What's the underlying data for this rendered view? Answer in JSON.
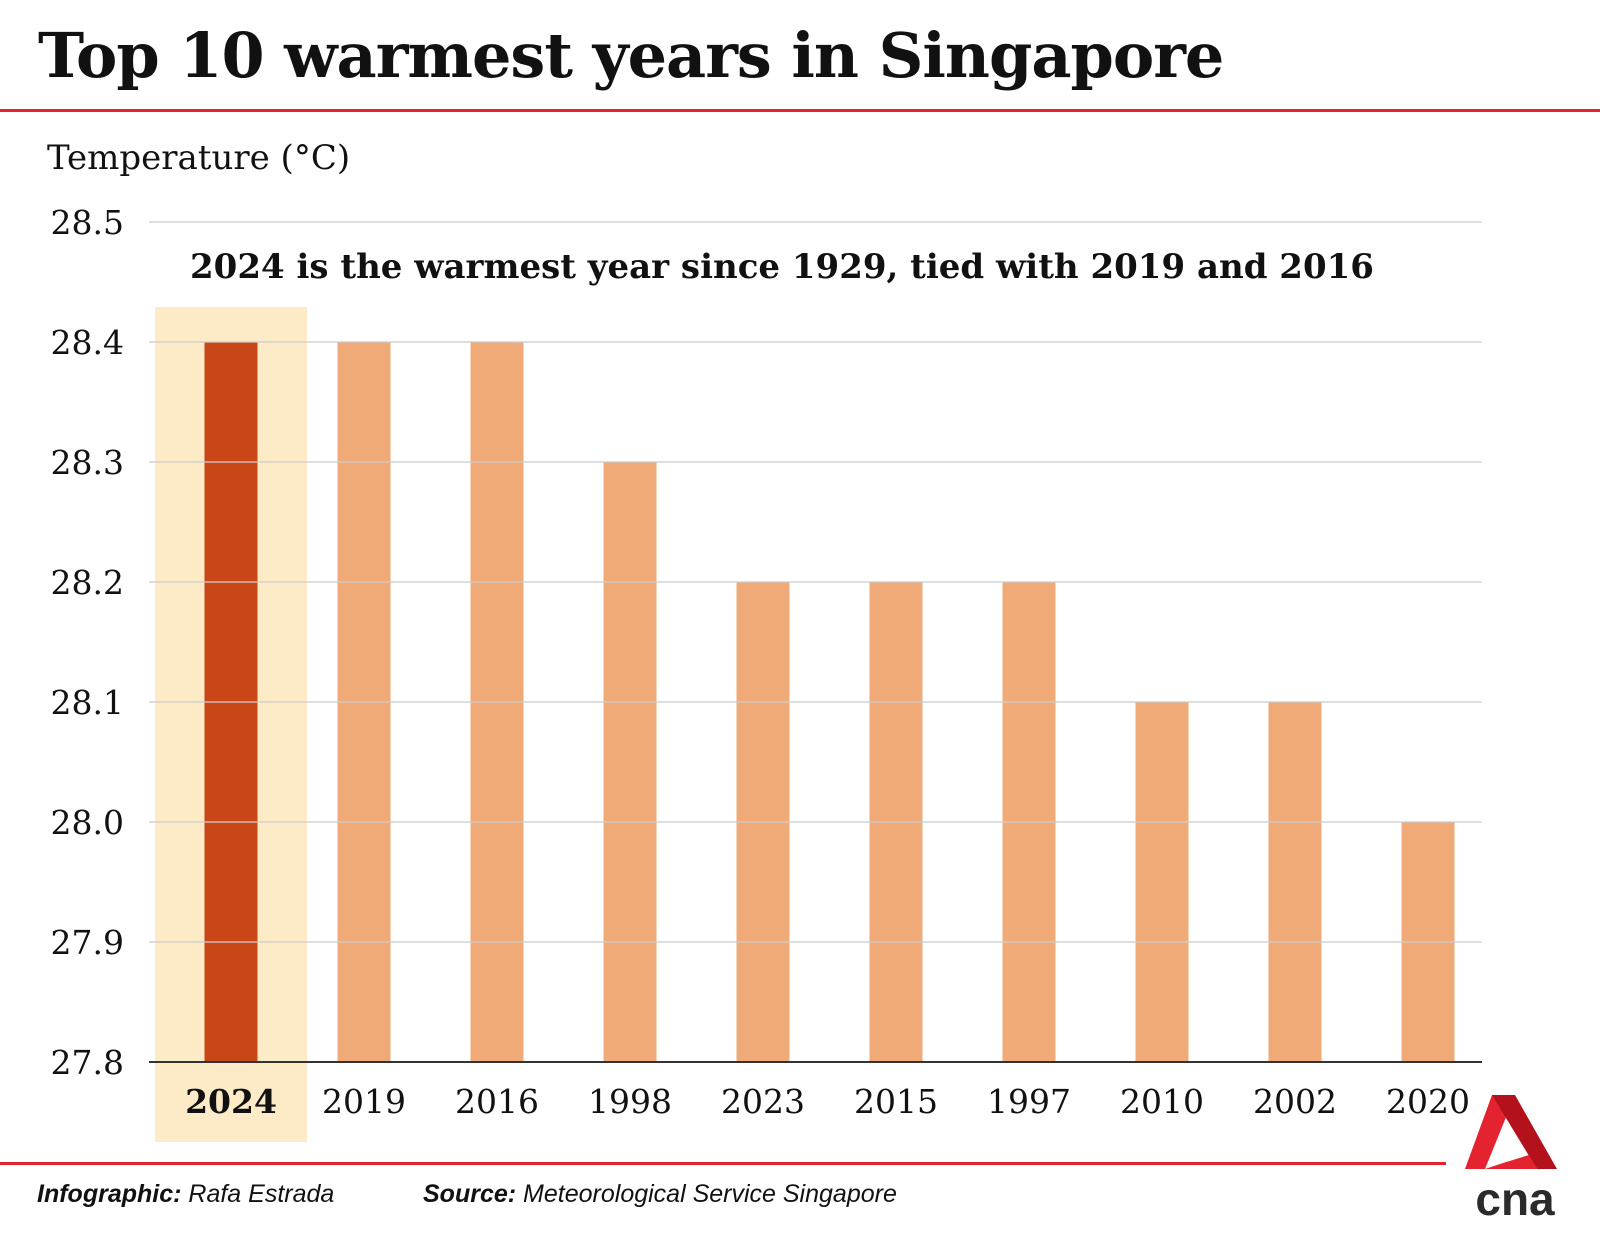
{
  "header": {
    "title": "Top 10 warmest years in Singapore",
    "y_axis_title": "Temperature (°C)"
  },
  "chart_data": {
    "type": "bar",
    "title": "Top 10 warmest years in Singapore",
    "ylabel": "Temperature (°C)",
    "xlabel": "",
    "annotation": "2024 is the warmest year since 1929, tied with 2019 and 2016",
    "categories": [
      "2024",
      "2019",
      "2016",
      "1998",
      "2023",
      "2015",
      "1997",
      "2010",
      "2002",
      "2020"
    ],
    "values": [
      28.4,
      28.4,
      28.4,
      28.3,
      28.2,
      28.2,
      28.2,
      28.1,
      28.1,
      28.0
    ],
    "highlight": "2024",
    "ylim": [
      27.8,
      28.5
    ],
    "yticks": [
      "28.5",
      "28.4",
      "28.3",
      "28.2",
      "28.1",
      "28.0",
      "27.9",
      "27.8"
    ],
    "ytick_values": [
      28.5,
      28.4,
      28.3,
      28.2,
      28.1,
      28.0,
      27.9,
      27.8
    ],
    "grid": true,
    "colors": {
      "highlight_bar": "#c94716",
      "bar": "#efaa78",
      "highlight_band": "#fdebc8",
      "grid": "#cccccc",
      "axis": "#333333"
    }
  },
  "footer": {
    "infographic_label": "Infographic:",
    "infographic_value": "Rafa Estrada",
    "source_label": "Source:",
    "source_value": "Meteorological Service Singapore"
  },
  "brand": {
    "logo_text": "cna",
    "accent": "#e3232f"
  }
}
